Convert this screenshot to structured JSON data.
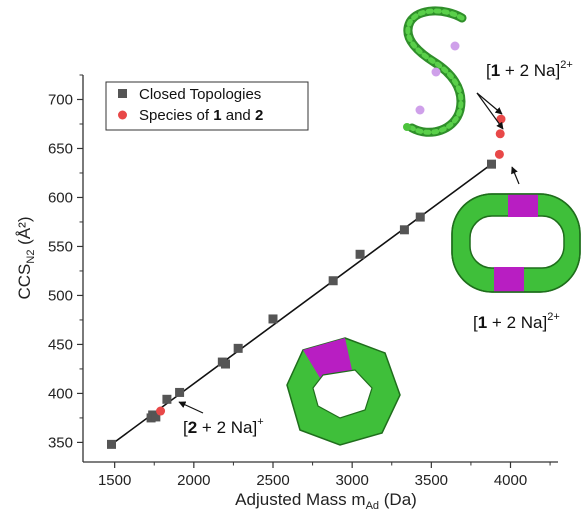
{
  "chart_data": {
    "type": "scatter",
    "xlabel": "Adjusted Mass m",
    "xlabel_sub": "Ad",
    "xlabel_unit": " (Da)",
    "ylabel": "CCS",
    "ylabel_sub": "N2",
    "ylabel_unit": " (Å²)",
    "xlim": [
      1300,
      4300
    ],
    "ylim": [
      330,
      725
    ],
    "xticks": [
      1500,
      2000,
      2500,
      3000,
      3500,
      4000
    ],
    "yticks": [
      350,
      400,
      450,
      500,
      550,
      600,
      650,
      700
    ],
    "legend_position": "top-left",
    "series": [
      {
        "name": "Closed Topologies",
        "marker": "square",
        "color": "#555555",
        "points": [
          [
            1480,
            348
          ],
          [
            1730,
            375
          ],
          [
            1740,
            378
          ],
          [
            1760,
            376
          ],
          [
            1830,
            394
          ],
          [
            1910,
            401
          ],
          [
            2180,
            432
          ],
          [
            2200,
            430
          ],
          [
            2280,
            446
          ],
          [
            2500,
            476
          ],
          [
            2880,
            515
          ],
          [
            3050,
            542
          ],
          [
            3330,
            567
          ],
          [
            3430,
            580
          ],
          [
            3880,
            634
          ]
        ]
      },
      {
        "name": "Species of 1 and 2",
        "marker": "circle",
        "color": "#e84848",
        "points": [
          [
            1790,
            382
          ],
          [
            3930,
            644
          ],
          [
            3935,
            665
          ],
          [
            3940,
            680
          ]
        ]
      }
    ],
    "trendline": {
      "from": [
        1480,
        348
      ],
      "to": [
        3880,
        634
      ],
      "color": "#111111"
    },
    "legend_entries": [
      {
        "prefix": "Closed Topologies",
        "b1": "",
        "mid": "",
        "b2": ""
      },
      {
        "prefix": "Species of ",
        "b1": "1",
        "mid": " and ",
        "b2": "2"
      }
    ],
    "annotations": [
      {
        "id": "top",
        "pre": "[",
        "bold": "1",
        "post": " + 2 Na]",
        "sup": "2+"
      },
      {
        "id": "mid",
        "pre": "[",
        "bold": "1",
        "post": " + 2 Na]",
        "sup": "2+"
      },
      {
        "id": "low",
        "pre": "[",
        "bold": "2",
        "post": " + 2 Na]",
        "sup": "+"
      }
    ],
    "colors": {
      "ring_green": "#3fbf3a",
      "ring_magenta": "#b81ec2",
      "chain_green": "#4cc33c",
      "chain_lilac": "#cfa0ea"
    }
  }
}
